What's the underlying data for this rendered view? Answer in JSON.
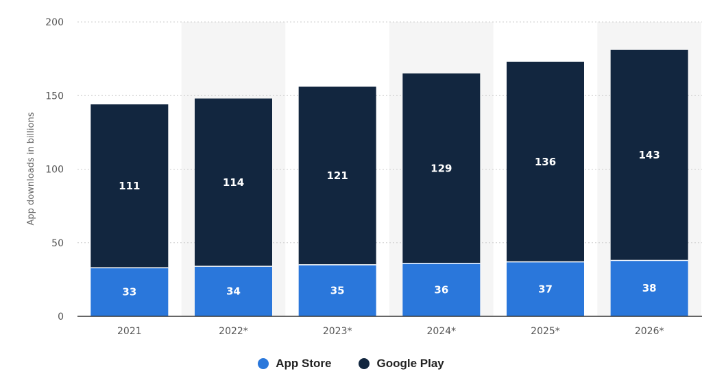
{
  "chart_data": {
    "type": "bar",
    "stacked": true,
    "categories": [
      "2021",
      "2022*",
      "2023*",
      "2024*",
      "2025*",
      "2026*"
    ],
    "series": [
      {
        "name": "App Store",
        "values": [
          33,
          34,
          35,
          36,
          37,
          38
        ],
        "color": "#2a77db"
      },
      {
        "name": "Google Play",
        "values": [
          111,
          114,
          121,
          129,
          136,
          143
        ],
        "color": "#12263f"
      }
    ],
    "ylabel": "App downloads in billions",
    "ylim": [
      0,
      200
    ],
    "yticks": [
      0,
      50,
      100,
      150,
      200
    ],
    "grid": true,
    "legend": "bottom-center"
  }
}
